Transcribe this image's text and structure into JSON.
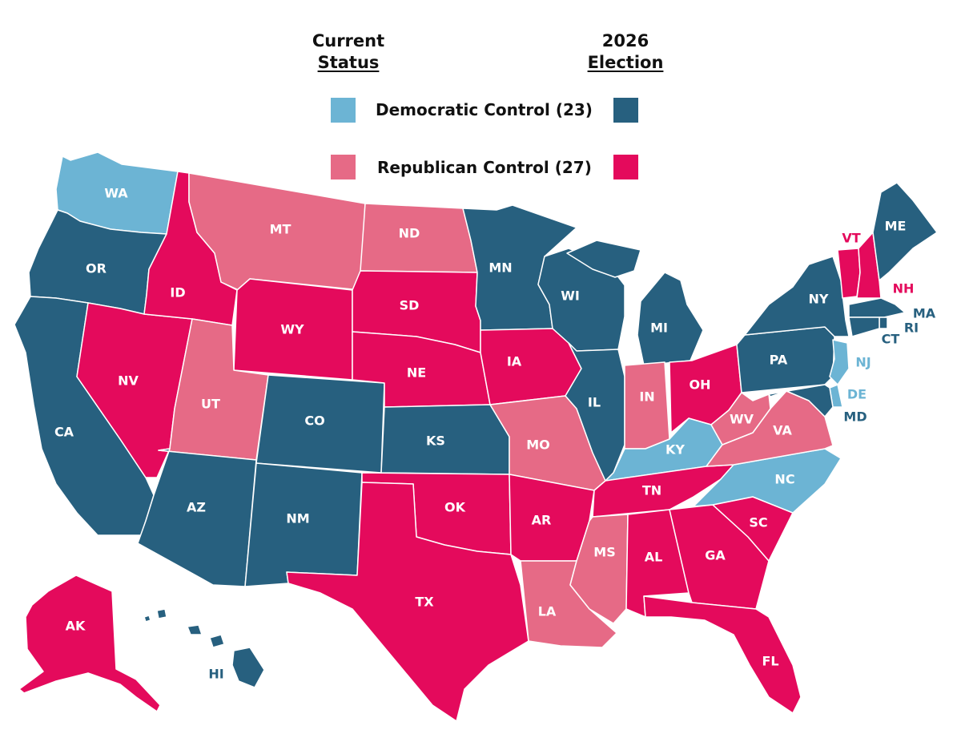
{
  "header": {
    "current_line1": "Current",
    "current_line2": "Status",
    "election_line1": "2026",
    "election_line2": "Election"
  },
  "legend": {
    "dem_label": "Democratic Control (23)",
    "rep_label": "Republican Control (27)"
  },
  "colors": {
    "dem_current": "#6cb4d4",
    "dem_2026": "#27607f",
    "rep_current": "#e66a86",
    "rep_2026": "#e40a5c",
    "label_on_fill": "#ffffff"
  },
  "states": [
    {
      "abbr": "WA",
      "status": "dem_current"
    },
    {
      "abbr": "OR",
      "status": "dem_2026"
    },
    {
      "abbr": "CA",
      "status": "dem_2026"
    },
    {
      "abbr": "NV",
      "status": "rep_2026"
    },
    {
      "abbr": "ID",
      "status": "rep_2026"
    },
    {
      "abbr": "MT",
      "status": "rep_current"
    },
    {
      "abbr": "WY",
      "status": "rep_2026"
    },
    {
      "abbr": "UT",
      "status": "rep_current"
    },
    {
      "abbr": "AZ",
      "status": "dem_2026"
    },
    {
      "abbr": "CO",
      "status": "dem_2026"
    },
    {
      "abbr": "NM",
      "status": "dem_2026"
    },
    {
      "abbr": "ND",
      "status": "rep_current"
    },
    {
      "abbr": "SD",
      "status": "rep_2026"
    },
    {
      "abbr": "NE",
      "status": "rep_2026"
    },
    {
      "abbr": "KS",
      "status": "dem_2026"
    },
    {
      "abbr": "OK",
      "status": "rep_2026"
    },
    {
      "abbr": "TX",
      "status": "rep_2026"
    },
    {
      "abbr": "MN",
      "status": "dem_2026"
    },
    {
      "abbr": "IA",
      "status": "rep_2026"
    },
    {
      "abbr": "MO",
      "status": "rep_current"
    },
    {
      "abbr": "AR",
      "status": "rep_2026"
    },
    {
      "abbr": "LA",
      "status": "rep_current"
    },
    {
      "abbr": "WI",
      "status": "dem_2026"
    },
    {
      "abbr": "IL",
      "status": "dem_2026"
    },
    {
      "abbr": "MI",
      "status": "dem_2026"
    },
    {
      "abbr": "IN",
      "status": "rep_current"
    },
    {
      "abbr": "OH",
      "status": "rep_2026"
    },
    {
      "abbr": "KY",
      "status": "dem_current"
    },
    {
      "abbr": "TN",
      "status": "rep_2026"
    },
    {
      "abbr": "MS",
      "status": "rep_current"
    },
    {
      "abbr": "AL",
      "status": "rep_2026"
    },
    {
      "abbr": "GA",
      "status": "rep_2026"
    },
    {
      "abbr": "FL",
      "status": "rep_2026"
    },
    {
      "abbr": "SC",
      "status": "rep_2026"
    },
    {
      "abbr": "NC",
      "status": "dem_current"
    },
    {
      "abbr": "VA",
      "status": "rep_current"
    },
    {
      "abbr": "WV",
      "status": "rep_current"
    },
    {
      "abbr": "PA",
      "status": "dem_2026"
    },
    {
      "abbr": "NY",
      "status": "dem_2026"
    },
    {
      "abbr": "VT",
      "status": "rep_2026"
    },
    {
      "abbr": "NH",
      "status": "rep_2026"
    },
    {
      "abbr": "ME",
      "status": "dem_2026"
    },
    {
      "abbr": "MA",
      "status": "dem_2026"
    },
    {
      "abbr": "RI",
      "status": "dem_2026"
    },
    {
      "abbr": "CT",
      "status": "dem_2026"
    },
    {
      "abbr": "NJ",
      "status": "dem_current"
    },
    {
      "abbr": "DE",
      "status": "dem_current"
    },
    {
      "abbr": "MD",
      "status": "dem_2026"
    },
    {
      "abbr": "AK",
      "status": "rep_2026"
    },
    {
      "abbr": "HI",
      "status": "dem_2026"
    }
  ]
}
